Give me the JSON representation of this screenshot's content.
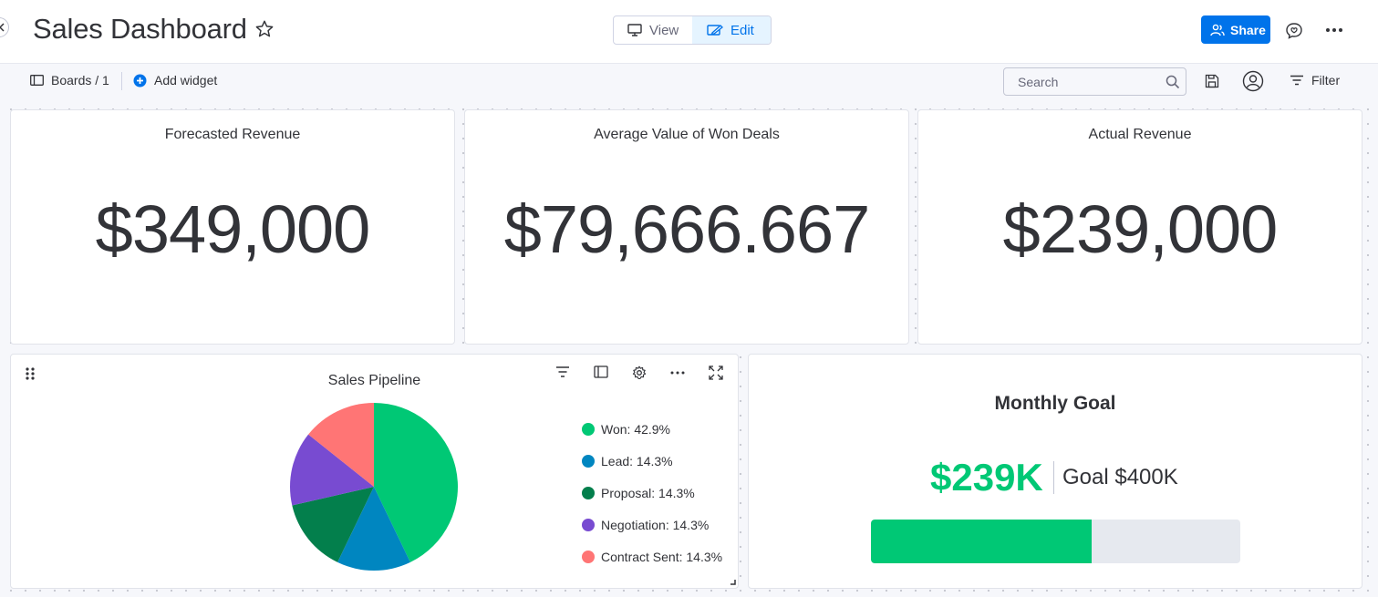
{
  "header": {
    "title": "Sales Dashboard",
    "view_label": "View",
    "edit_label": "Edit",
    "share_label": "Share"
  },
  "toolbar": {
    "breadcrumb": "Boards / 1",
    "add_widget_label": "Add widget",
    "search_placeholder": "Search",
    "filter_label": "Filter"
  },
  "widgets": {
    "forecasted": {
      "title": "Forecasted Revenue",
      "value": "$349,000"
    },
    "avg_won": {
      "title": "Average Value of Won Deals",
      "value": "$79,666.667"
    },
    "actual": {
      "title": "Actual Revenue",
      "value": "$239,000"
    }
  },
  "pipeline": {
    "title": "Sales Pipeline",
    "legend": [
      {
        "label": "Won: 42.9%",
        "color": "#00c875"
      },
      {
        "label": "Lead: 14.3%",
        "color": "#0086c0"
      },
      {
        "label": "Proposal: 14.3%",
        "color": "#037f4c"
      },
      {
        "label": "Negotiation: 14.3%",
        "color": "#784bd1"
      },
      {
        "label": "Contract Sent: 14.3%",
        "color": "#ff7575"
      }
    ]
  },
  "chart_data": {
    "type": "pie",
    "title": "Sales Pipeline",
    "categories": [
      "Won",
      "Lead",
      "Proposal",
      "Negotiation",
      "Contract Sent"
    ],
    "values": [
      42.9,
      14.3,
      14.3,
      14.3,
      14.3
    ],
    "colors": [
      "#00c875",
      "#0086c0",
      "#037f4c",
      "#784bd1",
      "#ff7575"
    ],
    "legend_position": "right"
  },
  "goal": {
    "title": "Monthly Goal",
    "value": "$239K",
    "target": "Goal $400K",
    "progress": 0.5975,
    "fill_color": "#00c875",
    "track_color": "#e6e9ef"
  },
  "colors": {
    "accent": "#0073ea",
    "text": "#323338",
    "background": "#f6f7fb"
  }
}
